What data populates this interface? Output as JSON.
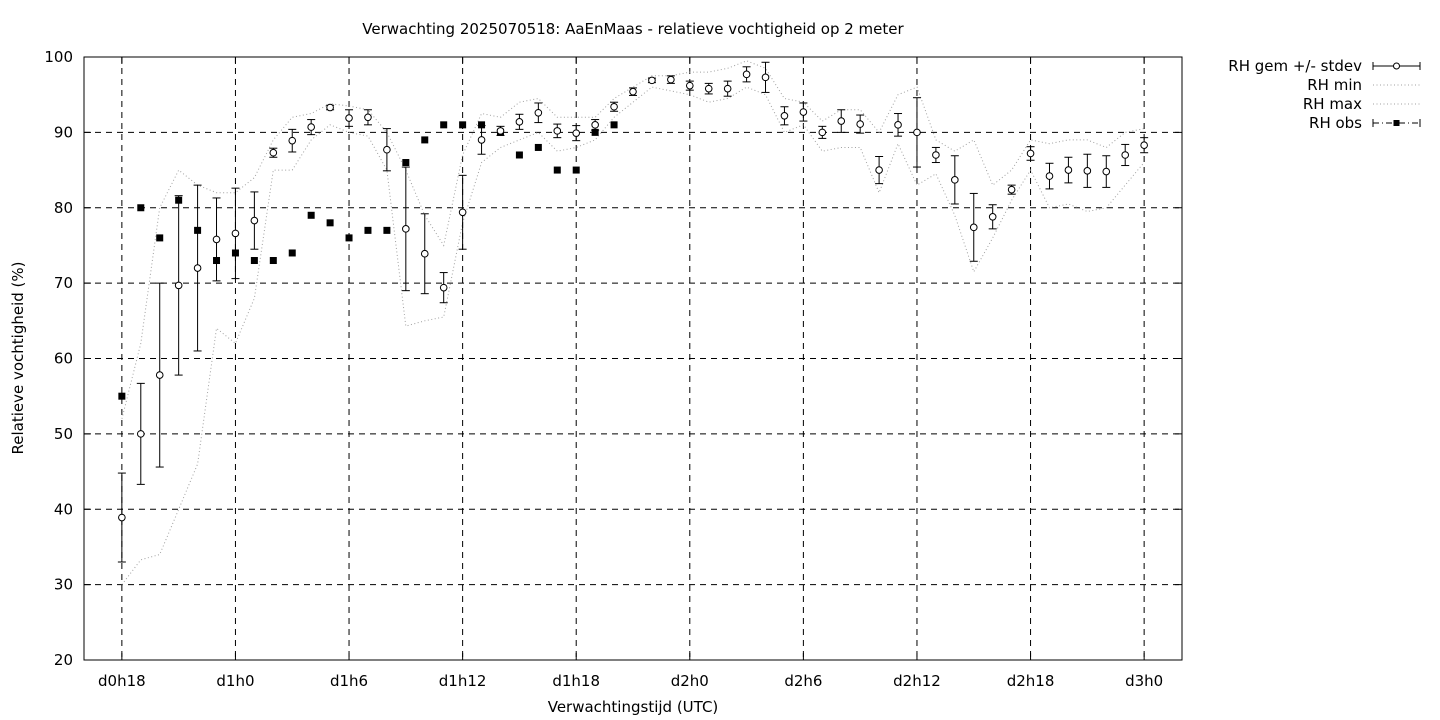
{
  "chart_data": {
    "type": "scatter",
    "title": "Verwachting 2025070518: AaEnMaas - relatieve vochtigheid op 2 meter",
    "xlabel": "Verwachtingstijd (UTC)",
    "ylabel": "Relatieve vochtigheid (%)",
    "xlim": [
      16,
      74
    ],
    "ylim": [
      20,
      100
    ],
    "x_unit": "forecast hours since d0h0",
    "x_ticks": [
      {
        "x": 18,
        "label": "d0h18"
      },
      {
        "x": 24,
        "label": "d1h0"
      },
      {
        "x": 30,
        "label": "d1h6"
      },
      {
        "x": 36,
        "label": "d1h12"
      },
      {
        "x": 42,
        "label": "d1h18"
      },
      {
        "x": 48,
        "label": "d2h0"
      },
      {
        "x": 54,
        "label": "d2h6"
      },
      {
        "x": 60,
        "label": "d2h12"
      },
      {
        "x": 66,
        "label": "d2h18"
      },
      {
        "x": 72,
        "label": "d3h0"
      }
    ],
    "y_ticks": [
      20,
      30,
      40,
      50,
      60,
      70,
      80,
      90,
      100
    ],
    "grid": true,
    "legend_position": "outside-top-right",
    "legend": [
      {
        "label": "RH gem +/- stdev",
        "style": "errorbar-circle"
      },
      {
        "label": "RH min",
        "style": "dotted"
      },
      {
        "label": "RH max",
        "style": "dotted"
      },
      {
        "label": "RH obs",
        "style": "dash-dot-square"
      }
    ],
    "series": [
      {
        "name": "RH gem +/- stdev",
        "x": [
          18,
          19,
          20,
          21,
          22,
          23,
          24,
          25,
          26,
          27,
          28,
          29,
          30,
          31,
          32,
          33,
          34,
          35,
          36,
          37,
          38,
          39,
          40,
          41,
          42,
          43,
          44,
          45,
          46,
          47,
          48,
          49,
          50,
          51,
          52,
          53,
          54,
          55,
          56,
          57,
          58,
          59,
          60,
          61,
          62,
          63,
          64,
          65,
          66,
          67,
          68,
          69,
          70,
          71,
          72
        ],
        "y": [
          38.9,
          50.0,
          57.8,
          69.7,
          72.0,
          75.8,
          76.6,
          78.3,
          87.3,
          88.9,
          90.7,
          93.3,
          91.9,
          92.0,
          87.7,
          77.2,
          73.9,
          69.4,
          79.4,
          89.0,
          90.2,
          91.4,
          92.6,
          90.2,
          89.9,
          91.0,
          93.4,
          95.4,
          96.9,
          97.0,
          96.2,
          95.8,
          95.8,
          97.7,
          97.3,
          92.2,
          92.7,
          90.0,
          91.5,
          91.1,
          85.0,
          91.0,
          90.0,
          87.0,
          83.7,
          77.4,
          78.8,
          82.4,
          87.2,
          84.2,
          85.0,
          84.9,
          84.8,
          87.0,
          88.3
        ],
        "stdev": [
          5.9,
          6.7,
          12.2,
          11.9,
          11.0,
          5.5,
          6.0,
          3.8,
          0.6,
          1.5,
          1.0,
          0.3,
          1.1,
          1.0,
          2.8,
          8.2,
          5.3,
          2.0,
          4.9,
          1.9,
          0.6,
          1.0,
          1.3,
          0.9,
          1.0,
          0.7,
          0.6,
          0.5,
          0.3,
          0.5,
          0.6,
          0.7,
          1.0,
          1.0,
          2.0,
          1.2,
          1.2,
          0.8,
          1.5,
          1.2,
          1.8,
          1.5,
          4.6,
          1.0,
          3.2,
          4.5,
          1.6,
          0.6,
          0.9,
          1.7,
          1.7,
          2.2,
          2.1,
          1.4,
          1.0
        ]
      },
      {
        "name": "RH min",
        "x": [
          18,
          19,
          20,
          21,
          22,
          23,
          24,
          25,
          26,
          27,
          28,
          29,
          30,
          31,
          32,
          33,
          34,
          35,
          36,
          37,
          38,
          39,
          40,
          41,
          42,
          43,
          44,
          45,
          46,
          47,
          48,
          49,
          50,
          51,
          52,
          53,
          54,
          55,
          56,
          57,
          58,
          59,
          60,
          61,
          62,
          63,
          64,
          65,
          66,
          67,
          68,
          69,
          70,
          71,
          72
        ],
        "y": [
          30.0,
          33.3,
          34.0,
          40.0,
          46.0,
          64.0,
          62.0,
          68.0,
          85.0,
          85.0,
          89.0,
          91.0,
          90.0,
          89.5,
          85.0,
          64.3,
          65.0,
          65.5,
          78.0,
          86.0,
          88.0,
          89.0,
          90.0,
          87.5,
          88.0,
          89.0,
          92.0,
          94.0,
          96.0,
          95.5,
          95.0,
          94.0,
          94.5,
          96.0,
          95.0,
          90.0,
          91.0,
          87.5,
          88.0,
          88.0,
          82.0,
          88.5,
          83.0,
          84.5,
          79.0,
          71.5,
          76.0,
          81.0,
          85.0,
          80.0,
          80.5,
          79.5,
          80.0,
          83.0,
          86.0
        ]
      },
      {
        "name": "RH max",
        "x": [
          18,
          19,
          20,
          21,
          22,
          23,
          24,
          25,
          26,
          27,
          28,
          29,
          30,
          31,
          32,
          33,
          34,
          35,
          36,
          37,
          38,
          39,
          40,
          41,
          42,
          43,
          44,
          45,
          46,
          47,
          48,
          49,
          50,
          51,
          52,
          53,
          54,
          55,
          56,
          57,
          58,
          59,
          60,
          61,
          62,
          63,
          64,
          65,
          66,
          67,
          68,
          69,
          70,
          71,
          72
        ],
        "y": [
          52.0,
          62.0,
          80.0,
          85.0,
          83.0,
          82.0,
          82.0,
          84.0,
          89.0,
          92.0,
          92.5,
          93.8,
          93.5,
          93.0,
          90.0,
          85.0,
          79.0,
          75.0,
          87.0,
          92.5,
          92.0,
          94.0,
          94.5,
          92.0,
          92.0,
          92.0,
          94.5,
          96.0,
          97.5,
          97.5,
          98.0,
          98.0,
          98.5,
          99.5,
          98.5,
          94.5,
          94.0,
          91.5,
          93.0,
          93.0,
          90.0,
          95.0,
          96.0,
          89.0,
          87.5,
          89.0,
          83.0,
          85.0,
          89.0,
          88.5,
          89.0,
          89.0,
          88.0,
          90.0,
          90.5
        ]
      },
      {
        "name": "RH obs",
        "x": [
          18,
          19,
          20,
          21,
          22,
          23,
          24,
          25,
          26,
          27,
          28,
          29,
          30,
          31,
          32,
          33,
          34,
          35,
          36,
          37,
          38,
          39,
          40,
          41,
          42,
          43,
          44
        ],
        "y": [
          55,
          80,
          76,
          81,
          77,
          73,
          74,
          73,
          73,
          74,
          79,
          78,
          76,
          77,
          77,
          86,
          89,
          91,
          91,
          91,
          90,
          87,
          88,
          85,
          85,
          90,
          91
        ]
      }
    ]
  }
}
